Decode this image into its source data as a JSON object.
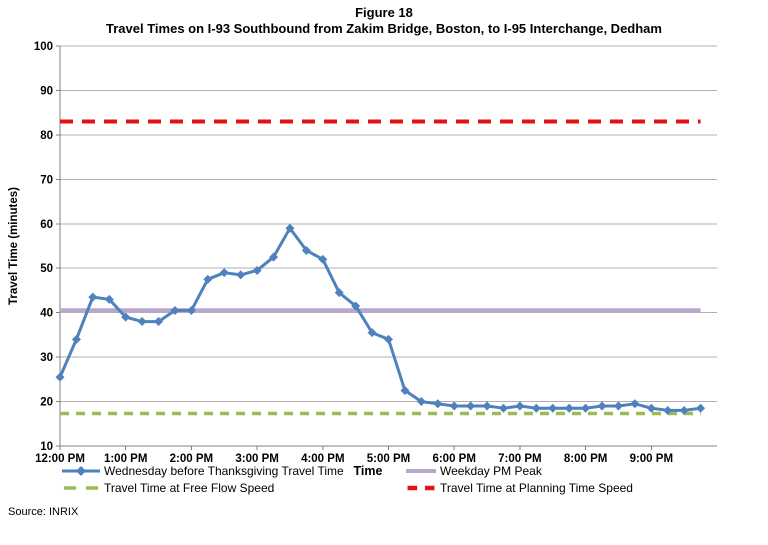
{
  "chart_data": {
    "type": "line",
    "title": "Figure 18",
    "subtitle": "Travel Times on I-93 Southbound from Zakim Bridge, Boston, to I-95 Interchange, Dedham",
    "xlabel": "Time",
    "ylabel": "Travel Time (minutes)",
    "ylim": [
      10,
      100
    ],
    "y_ticks": [
      10,
      20,
      30,
      40,
      50,
      60,
      70,
      80,
      90,
      100
    ],
    "x_minutes_domain": [
      0,
      600
    ],
    "x_tick_minutes": [
      0,
      60,
      120,
      180,
      240,
      300,
      360,
      420,
      480,
      540
    ],
    "x_tick_labels": [
      "12:00 PM",
      "1:00 PM",
      "2:00 PM",
      "3:00 PM",
      "4:00 PM",
      "5:00 PM",
      "6:00 PM",
      "7:00 PM",
      "8:00 PM",
      "9:00 PM"
    ],
    "grid": true,
    "legend_position": "bottom",
    "series": [
      {
        "name": "Wednesday before Thanksgiving Travel Time",
        "color": "#4F81BD",
        "style": "solid-diamond",
        "x_minutes": [
          0,
          15,
          30,
          45,
          60,
          75,
          90,
          105,
          120,
          135,
          150,
          165,
          180,
          195,
          210,
          225,
          240,
          255,
          270,
          285,
          300,
          315,
          330,
          345,
          360,
          375,
          390,
          405,
          420,
          435,
          450,
          465,
          480,
          495,
          510,
          525,
          540,
          555,
          570,
          585
        ],
        "values": [
          25.5,
          34,
          43.5,
          43,
          39,
          38,
          38,
          40.5,
          40.5,
          47.5,
          49,
          48.5,
          49.5,
          52.5,
          59,
          54,
          52,
          44.5,
          41.5,
          35.5,
          34,
          22.5,
          20,
          19.5,
          19,
          19,
          19,
          18.5,
          19,
          18.5,
          18.5,
          18.5,
          18.5,
          19,
          19,
          19.5,
          18.5,
          18,
          18,
          18.5
        ]
      },
      {
        "name": "Weekday PM Peak",
        "color": "#B7A8CC",
        "style": "solid",
        "value": 40.5,
        "span_minutes": [
          0,
          585
        ]
      },
      {
        "name": "Travel Time at Free Flow Speed",
        "color": "#9BBB59",
        "style": "dashed",
        "value": 17.3,
        "span_minutes": [
          0,
          585
        ]
      },
      {
        "name": "Travel Time at Planning Time Speed",
        "color": "#E11414",
        "style": "dashed-bold",
        "value": 83,
        "span_minutes": [
          0,
          585
        ]
      }
    ],
    "legend": {
      "rows": [
        {
          "items": [
            {
              "series_index": 0,
              "swatch": "line-diamond"
            },
            {
              "series_index": 1,
              "swatch": "line"
            }
          ]
        },
        {
          "items": [
            {
              "series_index": 2,
              "swatch": "dashes"
            },
            {
              "series_index": 3,
              "swatch": "dashes-bold"
            }
          ]
        }
      ]
    },
    "source": "Source: INRIX"
  }
}
